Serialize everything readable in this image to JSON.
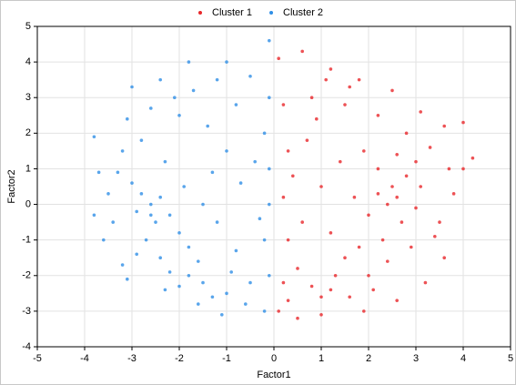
{
  "chart_data": {
    "type": "scatter",
    "x_label": "Factor1",
    "y_label": "Factor2",
    "xlim": [
      -5,
      5
    ],
    "ylim": [
      -4,
      5
    ],
    "xticks": [
      -5,
      -4,
      -3,
      -2,
      -1,
      0,
      1,
      2,
      3,
      4,
      5
    ],
    "yticks": [
      -4,
      -3,
      -2,
      -1,
      0,
      1,
      2,
      3,
      4,
      5
    ],
    "grid": true,
    "legend": "top",
    "series": [
      {
        "name": "Cluster 1",
        "color": "#e8272a",
        "x": [
          0.1,
          0.6,
          1.2,
          1.8,
          2.5,
          3.1,
          3.6,
          4.0,
          4.2,
          4.0,
          3.8,
          3.5,
          3.6,
          3.2,
          2.6,
          1.9,
          1.0,
          0.5,
          0.1,
          0.2,
          0.3,
          0.2,
          0.3,
          0.2,
          0.8,
          1.5,
          2.2,
          2.8,
          3.0,
          2.5,
          2.6,
          2.4,
          2.8,
          3.1,
          2.2,
          2.0,
          2.7,
          3.0,
          2.3,
          1.8,
          1.2,
          1.0,
          1.3,
          0.8,
          0.5,
          1.5,
          2.0,
          1.6,
          0.6,
          1.0,
          1.4,
          0.7,
          1.9,
          2.6,
          3.3,
          1.2,
          0.4,
          1.7,
          2.9,
          3.4,
          2.4,
          0.9,
          1.6,
          2.1,
          0.3,
          3.7,
          2.2,
          1.1
        ],
        "values": [
          4.1,
          4.3,
          3.8,
          3.5,
          3.2,
          2.6,
          2.2,
          2.3,
          1.3,
          1.0,
          0.3,
          -0.5,
          -1.5,
          -2.2,
          -2.7,
          -3.0,
          -3.1,
          -3.2,
          -3.0,
          -2.2,
          -1.0,
          0.2,
          1.5,
          2.8,
          3.0,
          2.8,
          2.5,
          2.0,
          1.2,
          0.5,
          0.2,
          0.0,
          0.8,
          0.5,
          0.3,
          -0.3,
          -0.5,
          -0.1,
          -1.0,
          -1.2,
          -2.4,
          -2.6,
          -2.0,
          -2.3,
          -1.8,
          -1.5,
          -2.0,
          -2.6,
          -0.5,
          0.5,
          1.2,
          1.8,
          1.5,
          1.4,
          1.6,
          -0.8,
          0.8,
          0.2,
          -1.2,
          -0.9,
          -1.6,
          2.4,
          3.3,
          -2.4,
          -2.7,
          1.0,
          1.0,
          3.5
        ]
      },
      {
        "name": "Cluster 2",
        "color": "#2f8fe6",
        "x": [
          -3.8,
          -3.7,
          -3.8,
          -3.6,
          -3.2,
          -3.1,
          -3.0,
          -2.4,
          -1.8,
          -1.0,
          -0.5,
          -0.1,
          -0.1,
          -0.2,
          -0.1,
          -0.1,
          -0.2,
          -0.1,
          -0.2,
          -0.6,
          -1.1,
          -1.6,
          -2.0,
          -1.8,
          -2.2,
          -1.5,
          -1.0,
          -1.3,
          -2.4,
          -2.7,
          -2.5,
          -2.6,
          -2.4,
          -2.8,
          -3.0,
          -2.9,
          -2.2,
          -2.0,
          -1.8,
          -2.6,
          -3.3,
          -3.2,
          -2.8,
          -2.3,
          -1.9,
          -1.5,
          -1.2,
          -0.8,
          -0.5,
          -0.7,
          -1.0,
          -1.4,
          -2.0,
          -2.6,
          -1.7,
          -0.8,
          -1.2,
          -2.1,
          -0.4,
          -3.4,
          -3.5,
          -1.6,
          -2.3,
          -0.9,
          -3.1,
          -1.3,
          -2.9,
          -0.3
        ],
        "values": [
          1.9,
          0.9,
          -0.3,
          -1.0,
          -1.7,
          -2.1,
          3.3,
          3.5,
          4.0,
          4.0,
          3.6,
          4.6,
          3.0,
          2.0,
          1.0,
          0.0,
          -1.0,
          -2.0,
          -3.0,
          -2.8,
          -3.1,
          -2.8,
          -2.3,
          -2.0,
          -1.9,
          -2.2,
          -2.5,
          -2.6,
          -1.5,
          -1.0,
          -0.5,
          0.0,
          0.2,
          0.3,
          0.6,
          -0.2,
          -0.3,
          -0.8,
          -1.2,
          -0.3,
          0.9,
          1.5,
          1.8,
          1.2,
          0.5,
          0.0,
          -0.5,
          -1.3,
          -2.2,
          0.6,
          1.5,
          2.2,
          2.5,
          2.7,
          3.2,
          2.8,
          3.5,
          3.0,
          1.2,
          -0.5,
          0.3,
          -1.6,
          -2.4,
          -1.9,
          2.4,
          0.9,
          -1.4,
          -0.4
        ]
      }
    ]
  }
}
